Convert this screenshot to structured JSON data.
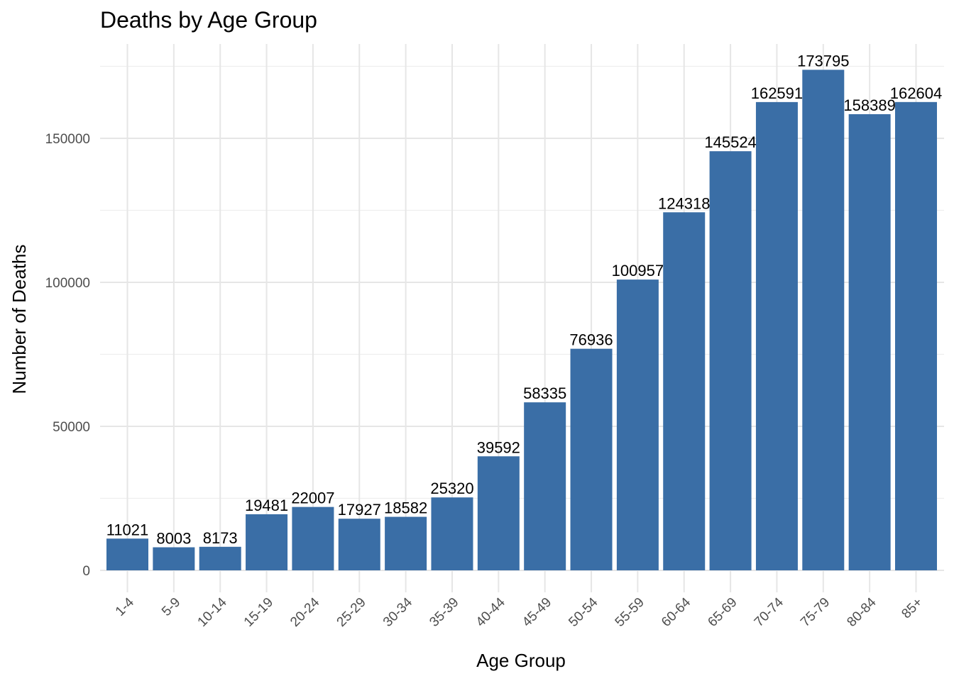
{
  "chart_data": {
    "type": "bar",
    "title": "Deaths by Age Group",
    "xlabel": "Age Group",
    "ylabel": "Number of Deaths",
    "categories": [
      "1-4",
      "5-9",
      "10-14",
      "15-19",
      "20-24",
      "25-29",
      "30-34",
      "35-39",
      "40-44",
      "45-49",
      "50-54",
      "55-59",
      "60-64",
      "65-69",
      "70-74",
      "75-79",
      "80-84",
      "85+"
    ],
    "values": [
      11021,
      8003,
      8173,
      19481,
      22007,
      17927,
      18582,
      25320,
      39592,
      58335,
      76936,
      100957,
      124318,
      145524,
      162591,
      173795,
      158389,
      162604
    ],
    "y_ticks": [
      0,
      50000,
      100000,
      150000
    ],
    "y_tick_labels": [
      "0",
      "50000",
      "100000",
      "150000"
    ],
    "ylim": [
      0,
      175000
    ],
    "bar_color": "#3A6EA6",
    "grid": true,
    "legend": "none",
    "data_labels": true
  }
}
